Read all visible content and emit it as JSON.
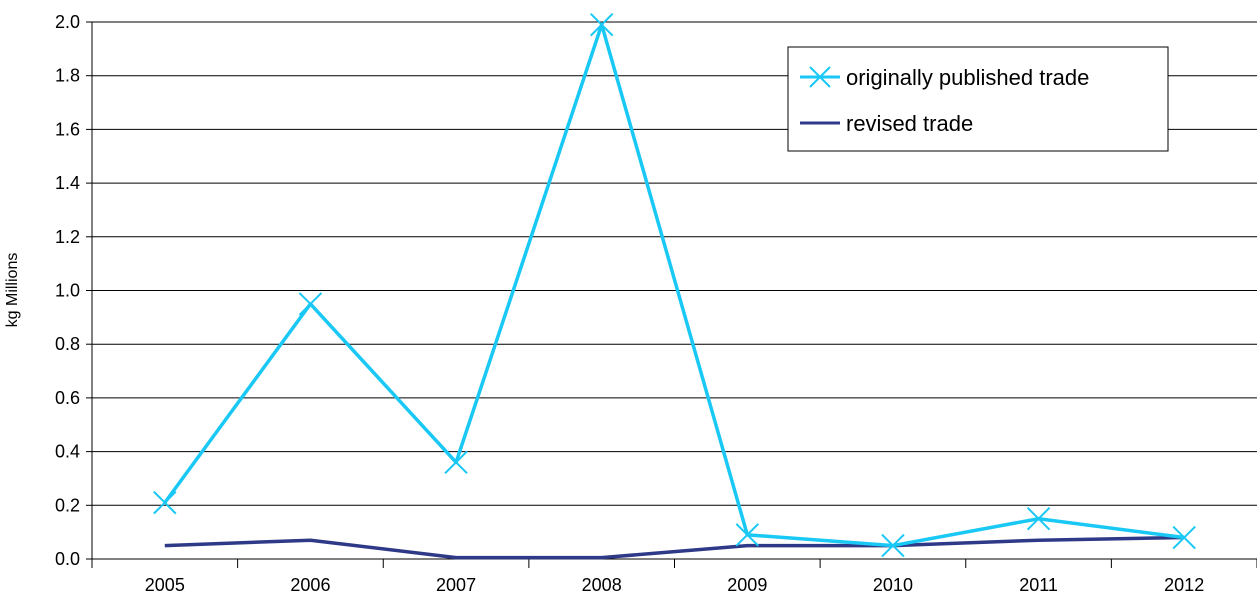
{
  "chart_data": {
    "type": "line",
    "title": "",
    "xlabel": "",
    "ylabel": "kg Millions",
    "categories": [
      "2005",
      "2006",
      "2007",
      "2008",
      "2009",
      "2010",
      "2011",
      "2012"
    ],
    "ylim": [
      0,
      2.0
    ],
    "yticks": [
      "0.0",
      "0.2",
      "0.4",
      "0.6",
      "0.8",
      "1.0",
      "1.2",
      "1.4",
      "1.6",
      "1.8",
      "2.0"
    ],
    "grid": "horizontal",
    "legend_position": "top-right",
    "series": [
      {
        "name": "originally published trade",
        "values": [
          0.21,
          0.95,
          0.36,
          1.99,
          0.09,
          0.05,
          0.15,
          0.08
        ],
        "color": "#19C8F5",
        "marker": "x"
      },
      {
        "name": "revised trade",
        "values": [
          0.05,
          0.07,
          0.005,
          0.005,
          0.05,
          0.05,
          0.07,
          0.08
        ],
        "color": "#2E3A87",
        "marker": "none"
      }
    ]
  }
}
